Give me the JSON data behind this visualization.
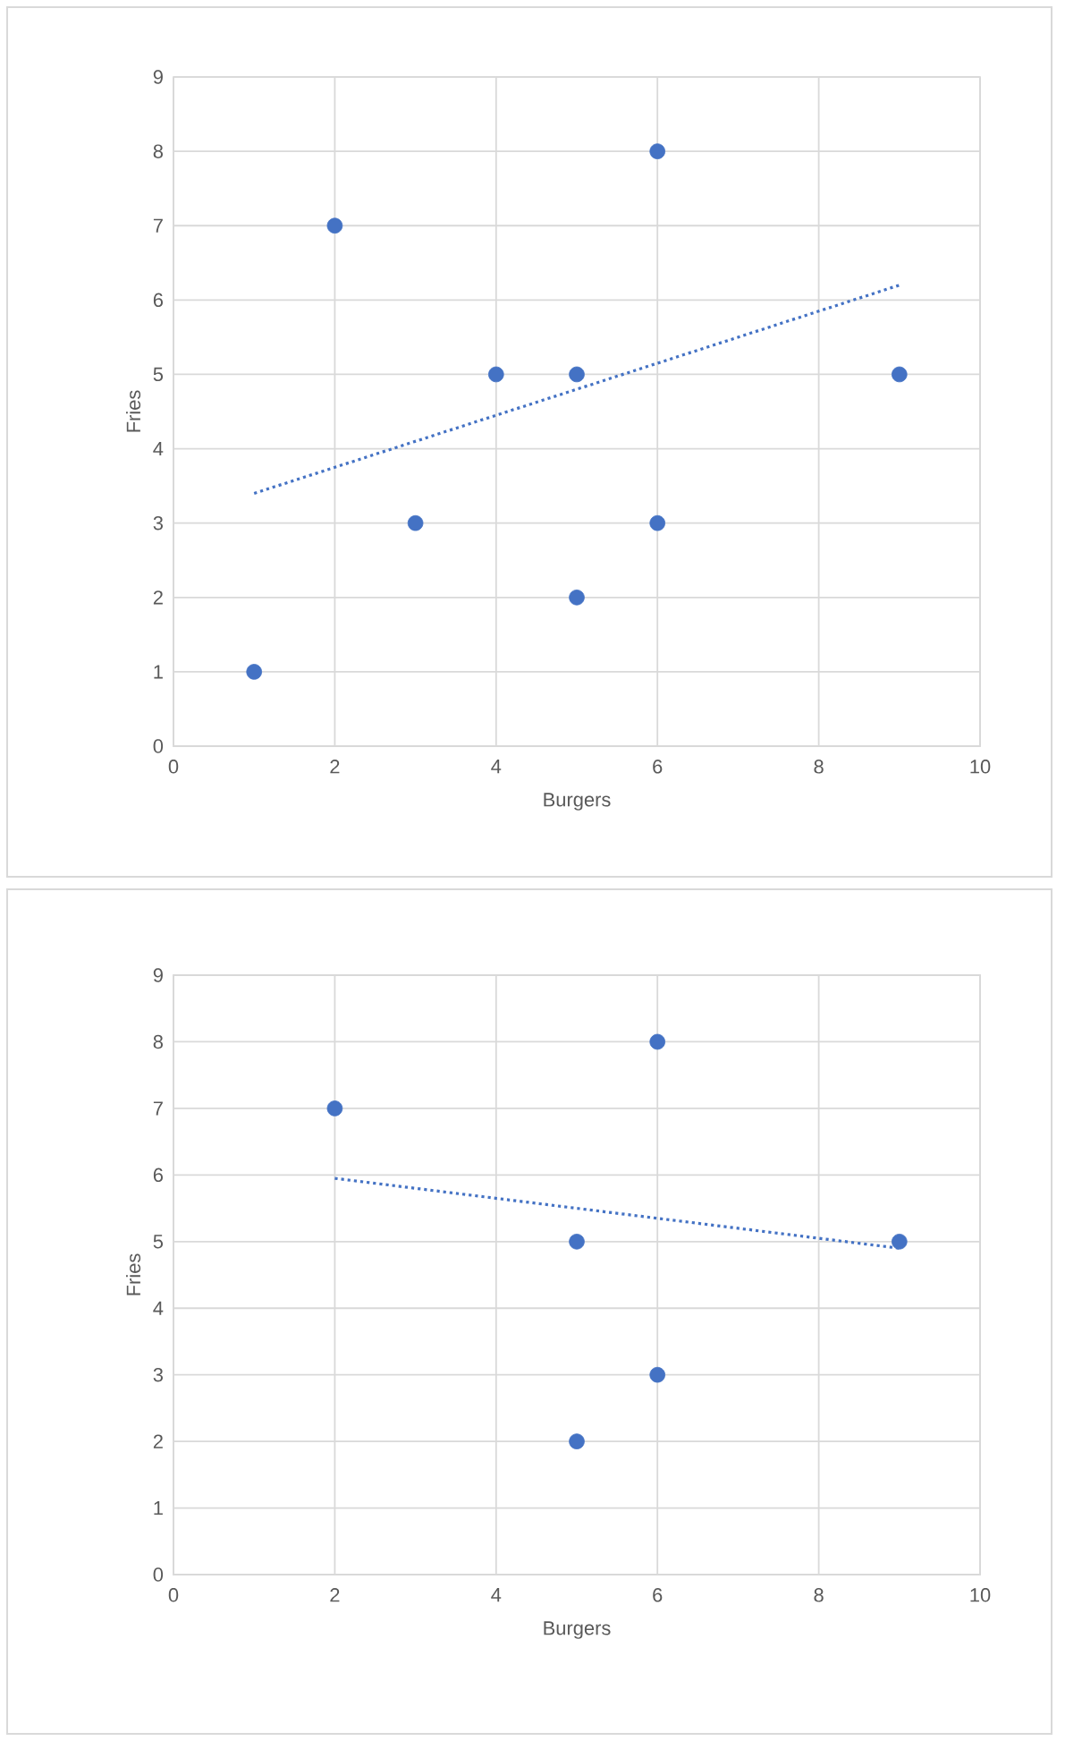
{
  "chart_data": [
    {
      "type": "scatter",
      "xlabel": "Burgers",
      "ylabel": "Fries",
      "xlim": [
        0,
        10
      ],
      "ylim": [
        0,
        9
      ],
      "xticks": [
        0,
        2,
        4,
        6,
        8,
        10
      ],
      "yticks": [
        0,
        1,
        2,
        3,
        4,
        5,
        6,
        7,
        8,
        9
      ],
      "grid": true,
      "series": [
        {
          "type": "scatter",
          "color": "#4472c4",
          "marker": "circle",
          "x": [
            1,
            2,
            3,
            4,
            5,
            5,
            6,
            6,
            9
          ],
          "values": [
            1,
            7,
            3,
            5,
            5,
            2,
            8,
            3,
            5
          ]
        },
        {
          "type": "line",
          "color": "#4472c4",
          "marker": "none",
          "line_style": "dotted",
          "x": [
            1,
            9
          ],
          "values": [
            3.4,
            6.2
          ]
        }
      ]
    },
    {
      "type": "scatter",
      "xlabel": "Burgers",
      "ylabel": "Fries",
      "xlim": [
        0,
        10
      ],
      "ylim": [
        0,
        9
      ],
      "xticks": [
        0,
        2,
        4,
        6,
        8,
        10
      ],
      "yticks": [
        0,
        1,
        2,
        3,
        4,
        5,
        6,
        7,
        8,
        9
      ],
      "grid": true,
      "series": [
        {
          "type": "scatter",
          "color": "#4472c4",
          "marker": "circle",
          "x": [
            2,
            5,
            5,
            6,
            6,
            9
          ],
          "values": [
            7,
            5,
            2,
            8,
            3,
            5
          ]
        },
        {
          "type": "line",
          "color": "#4472c4",
          "marker": "none",
          "line_style": "dotted",
          "x": [
            2,
            9
          ],
          "values": [
            5.95,
            4.9
          ]
        }
      ]
    }
  ]
}
